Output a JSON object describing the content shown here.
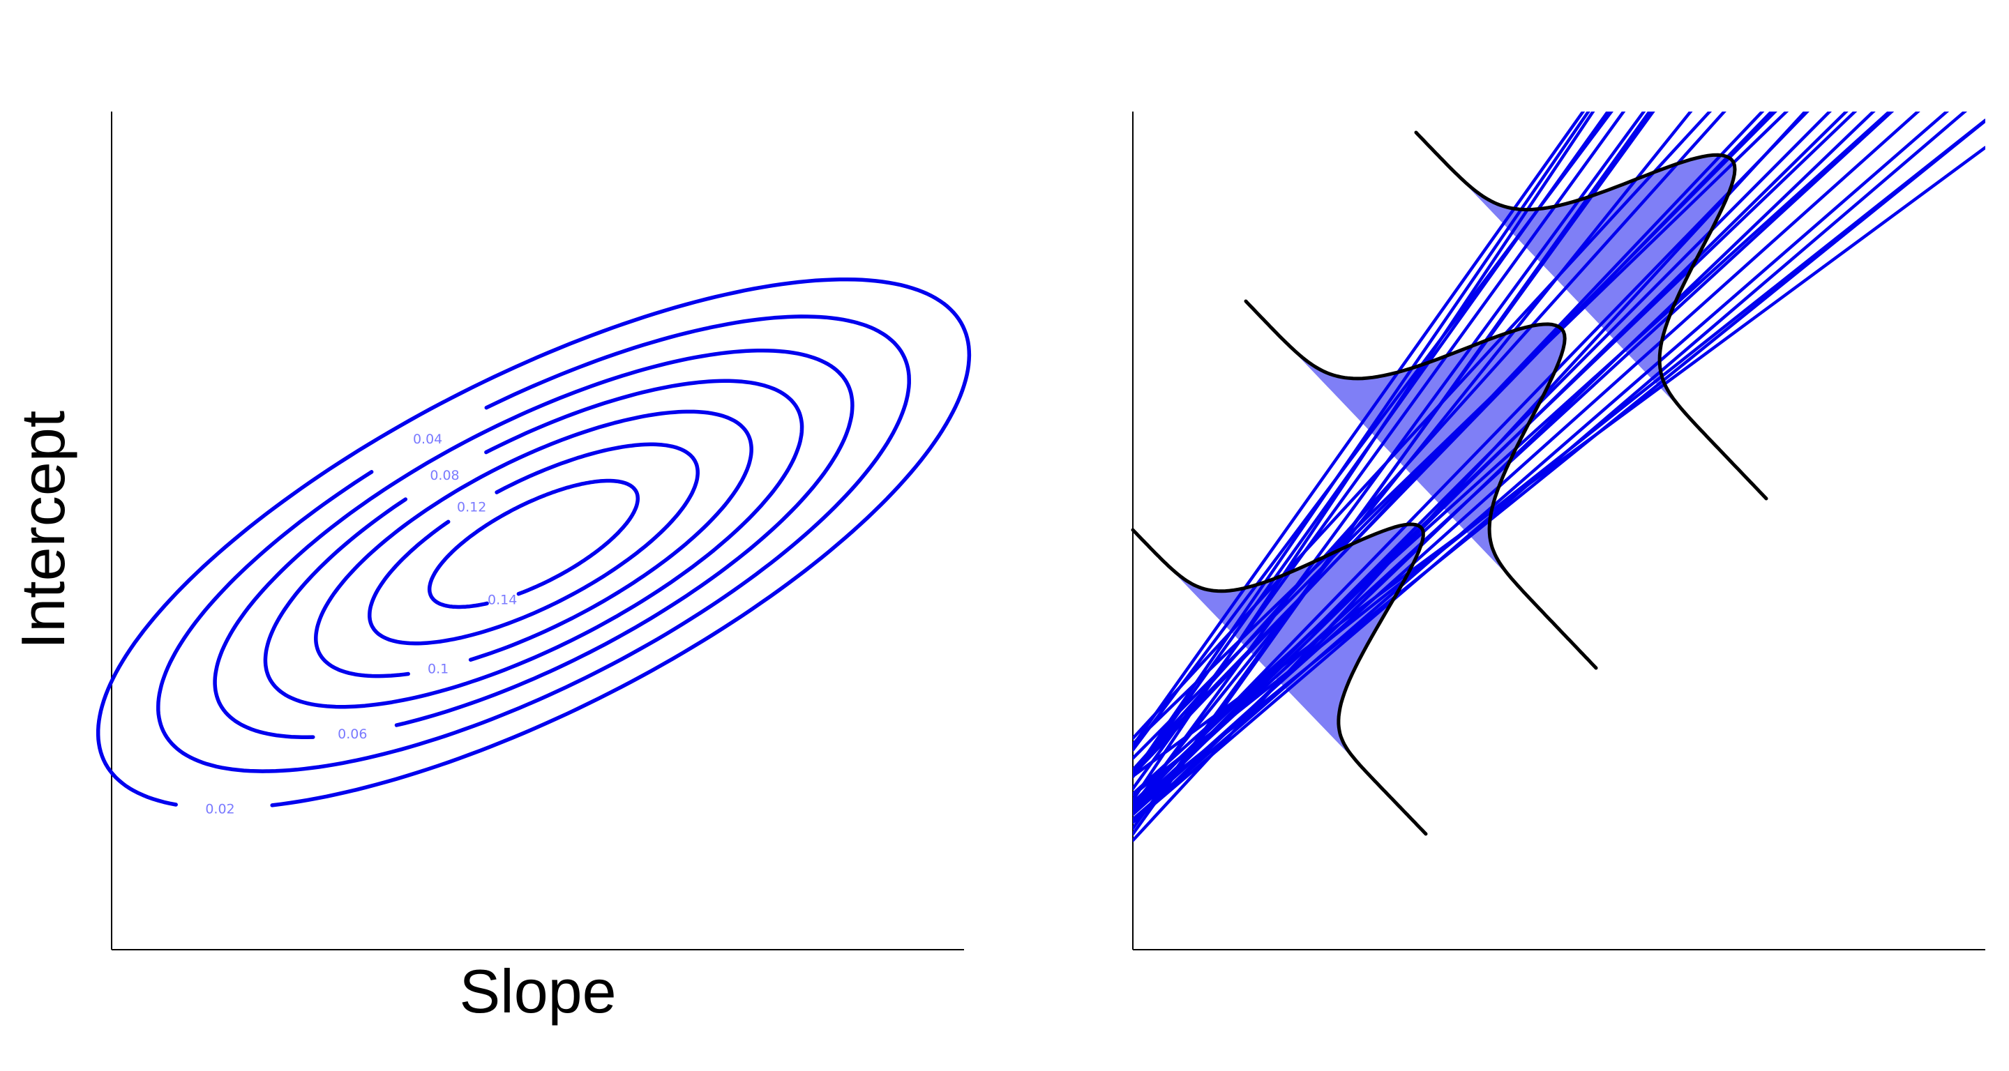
{
  "chart_data": [
    {
      "type": "contour",
      "xlabel": "Slope",
      "ylabel": "Intercept",
      "levels": [
        "0.02",
        "0.04",
        "0.06",
        "0.08",
        "0.1",
        "0.12",
        "0.14"
      ],
      "tick_labels": "none",
      "grid": false
    },
    {
      "type": "line",
      "xlabel": "",
      "ylabel": "",
      "n_lines": 30,
      "n_density_curves": 3,
      "tick_labels": "none",
      "grid": false
    }
  ],
  "colors": {
    "contour": "#0000ee",
    "density_fill": "#0000ee",
    "density_curve": "#000000"
  }
}
